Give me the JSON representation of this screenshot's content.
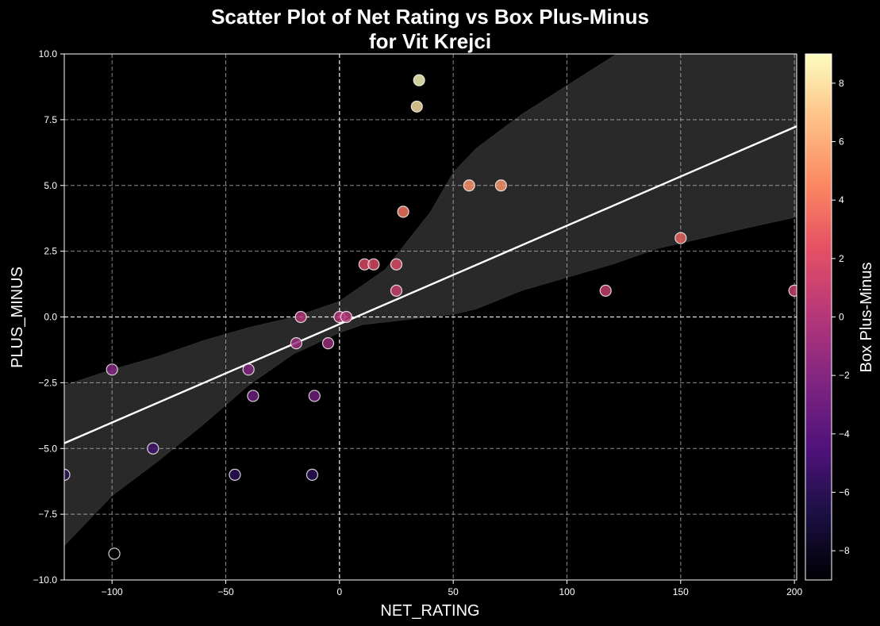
{
  "chart_data": {
    "type": "scatter",
    "title_line1": "Scatter Plot of Net Rating vs Box Plus-Minus",
    "title_line2": "for Vit Krejci",
    "xlabel": "NET_RATING",
    "ylabel": "PLUS_MINUS",
    "colorbar_label": "Box Plus-Minus",
    "xlim": [
      -121,
      201
    ],
    "ylim": [
      -10,
      10
    ],
    "x_ticks": [
      -100,
      -50,
      0,
      50,
      100,
      150,
      200
    ],
    "x_tick_labels": [
      "−100",
      "−50",
      "0",
      "50",
      "100",
      "150",
      "200"
    ],
    "y_ticks": [
      -10,
      -7.5,
      -5,
      -2.5,
      0,
      2.5,
      5,
      7.5,
      10
    ],
    "y_tick_labels": [
      "−10.0",
      "−7.5",
      "−5.0",
      "−2.5",
      "0.0",
      "2.5",
      "5.0",
      "7.5",
      "10.0"
    ],
    "colorbar_range": [
      -9,
      9
    ],
    "colorbar_ticks": [
      -8,
      -6,
      -4,
      -2,
      0,
      2,
      4,
      6,
      8
    ],
    "colorbar_tick_labels": [
      "−8",
      "−6",
      "−4",
      "−2",
      "0",
      "2",
      "4",
      "6",
      "8"
    ],
    "colormap": "magma",
    "grid": true,
    "reference_lines": {
      "x": 0,
      "y": 0
    },
    "points": [
      {
        "x": -121,
        "y": -6,
        "c": -6
      },
      {
        "x": -100,
        "y": -2,
        "c": -2
      },
      {
        "x": -99,
        "y": -9,
        "c": -9
      },
      {
        "x": -82,
        "y": -5,
        "c": -5
      },
      {
        "x": -46,
        "y": -6,
        "c": -6
      },
      {
        "x": -40,
        "y": -2,
        "c": -2
      },
      {
        "x": -38,
        "y": -3,
        "c": -3
      },
      {
        "x": -19,
        "y": -1,
        "c": -1
      },
      {
        "x": -17,
        "y": 0,
        "c": 0
      },
      {
        "x": -12,
        "y": -6,
        "c": -6
      },
      {
        "x": -11,
        "y": -3,
        "c": -3
      },
      {
        "x": -5,
        "y": -1,
        "c": -1
      },
      {
        "x": 0,
        "y": 0,
        "c": 0
      },
      {
        "x": 3,
        "y": 0,
        "c": 0
      },
      {
        "x": 11,
        "y": 2,
        "c": 2
      },
      {
        "x": 15,
        "y": 2,
        "c": 2
      },
      {
        "x": 25,
        "y": 1,
        "c": 1
      },
      {
        "x": 25,
        "y": 2,
        "c": 2
      },
      {
        "x": 28,
        "y": 4,
        "c": 4
      },
      {
        "x": 34,
        "y": 8,
        "c": 8
      },
      {
        "x": 35,
        "y": 9,
        "c": 9
      },
      {
        "x": 57,
        "y": 5,
        "c": 5
      },
      {
        "x": 71,
        "y": 5,
        "c": 5
      },
      {
        "x": 117,
        "y": 1,
        "c": 1
      },
      {
        "x": 150,
        "y": 3,
        "c": 3
      },
      {
        "x": 200,
        "y": 1,
        "c": 1
      }
    ],
    "regression_line": [
      [
        -121,
        -4.8
      ],
      [
        201,
        7.25
      ]
    ],
    "confidence_band": {
      "upper": [
        [
          -121,
          -2.6
        ],
        [
          -100,
          -2.0
        ],
        [
          -80,
          -1.5
        ],
        [
          -60,
          -0.9
        ],
        [
          -40,
          -0.4
        ],
        [
          -20,
          0.0
        ],
        [
          -10,
          0.3
        ],
        [
          0,
          0.6
        ],
        [
          20,
          1.8
        ],
        [
          30,
          2.9
        ],
        [
          40,
          4.0
        ],
        [
          50,
          5.5
        ],
        [
          60,
          6.4
        ],
        [
          80,
          7.7
        ],
        [
          100,
          8.8
        ],
        [
          120,
          9.9
        ],
        [
          140,
          11.0
        ],
        [
          160,
          12.1
        ],
        [
          180,
          13.2
        ],
        [
          201,
          14.4
        ]
      ],
      "lower": [
        [
          -121,
          -8.7
        ],
        [
          -100,
          -6.8
        ],
        [
          -80,
          -5.5
        ],
        [
          -60,
          -4.1
        ],
        [
          -40,
          -2.6
        ],
        [
          -20,
          -1.4
        ],
        [
          -10,
          -1.0
        ],
        [
          0,
          -0.6
        ],
        [
          10,
          -0.3
        ],
        [
          30,
          -0.1
        ],
        [
          40,
          0.0
        ],
        [
          50,
          0.1
        ],
        [
          60,
          0.3
        ],
        [
          80,
          1.0
        ],
        [
          100,
          1.5
        ],
        [
          120,
          2.0
        ],
        [
          140,
          2.6
        ],
        [
          160,
          3.0
        ],
        [
          180,
          3.4
        ],
        [
          201,
          3.8
        ]
      ]
    }
  }
}
